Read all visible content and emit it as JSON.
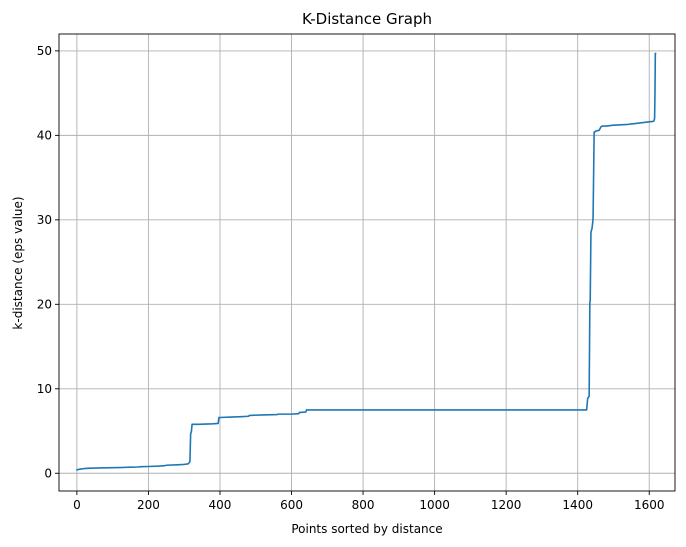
{
  "chart_data": {
    "type": "line",
    "title": "K-Distance Graph",
    "xlabel": "Points sorted by distance",
    "ylabel": "k-distance (eps value)",
    "xlim": [
      -50,
      1672
    ],
    "ylim": [
      -2.1,
      52.0
    ],
    "grid": true,
    "x_ticks": [
      0,
      200,
      400,
      600,
      800,
      1000,
      1200,
      1400,
      1600
    ],
    "y_ticks": [
      0,
      10,
      20,
      30,
      40,
      50
    ],
    "line_color": "#1f77b4",
    "series": [
      {
        "x": [
          0,
          5,
          10,
          20,
          35,
          50,
          80,
          120,
          150,
          170,
          180,
          200,
          230,
          245,
          250,
          280,
          300,
          310,
          313,
          316,
          318,
          320,
          322,
          325,
          340,
          380,
          395,
          397,
          400,
          430,
          460,
          480,
          482,
          520,
          560,
          562,
          600,
          620,
          622,
          640,
          642,
          650,
          651,
          700,
          800,
          1000,
          1200,
          1400,
          1425,
          1428,
          1430,
          1432,
          1434,
          1435,
          1437,
          1440,
          1442,
          1443,
          1446,
          1448,
          1450,
          1460,
          1465,
          1468,
          1470,
          1480,
          1500,
          1520,
          1540,
          1560,
          1580,
          1600,
          1610,
          1613,
          1615,
          1616,
          1617,
          1618
        ],
        "y": [
          0.4,
          0.45,
          0.5,
          0.55,
          0.6,
          0.62,
          0.64,
          0.68,
          0.72,
          0.74,
          0.78,
          0.8,
          0.85,
          0.9,
          0.95,
          1.0,
          1.05,
          1.1,
          1.2,
          1.4,
          4.7,
          4.9,
          5.8,
          5.8,
          5.8,
          5.85,
          5.9,
          6.6,
          6.6,
          6.65,
          6.7,
          6.75,
          6.85,
          6.9,
          6.95,
          7.0,
          7.0,
          7.05,
          7.2,
          7.25,
          7.5,
          7.5,
          7.5,
          7.5,
          7.5,
          7.5,
          7.5,
          7.5,
          7.5,
          8.9,
          9.0,
          9.1,
          20.2,
          20.5,
          28.5,
          29.0,
          29.7,
          30.3,
          40.4,
          40.4,
          40.5,
          40.6,
          41.0,
          41.1,
          41.1,
          41.1,
          41.2,
          41.25,
          41.3,
          41.4,
          41.5,
          41.6,
          41.65,
          41.7,
          42.0,
          45.0,
          49.7,
          49.7
        ]
      }
    ]
  }
}
